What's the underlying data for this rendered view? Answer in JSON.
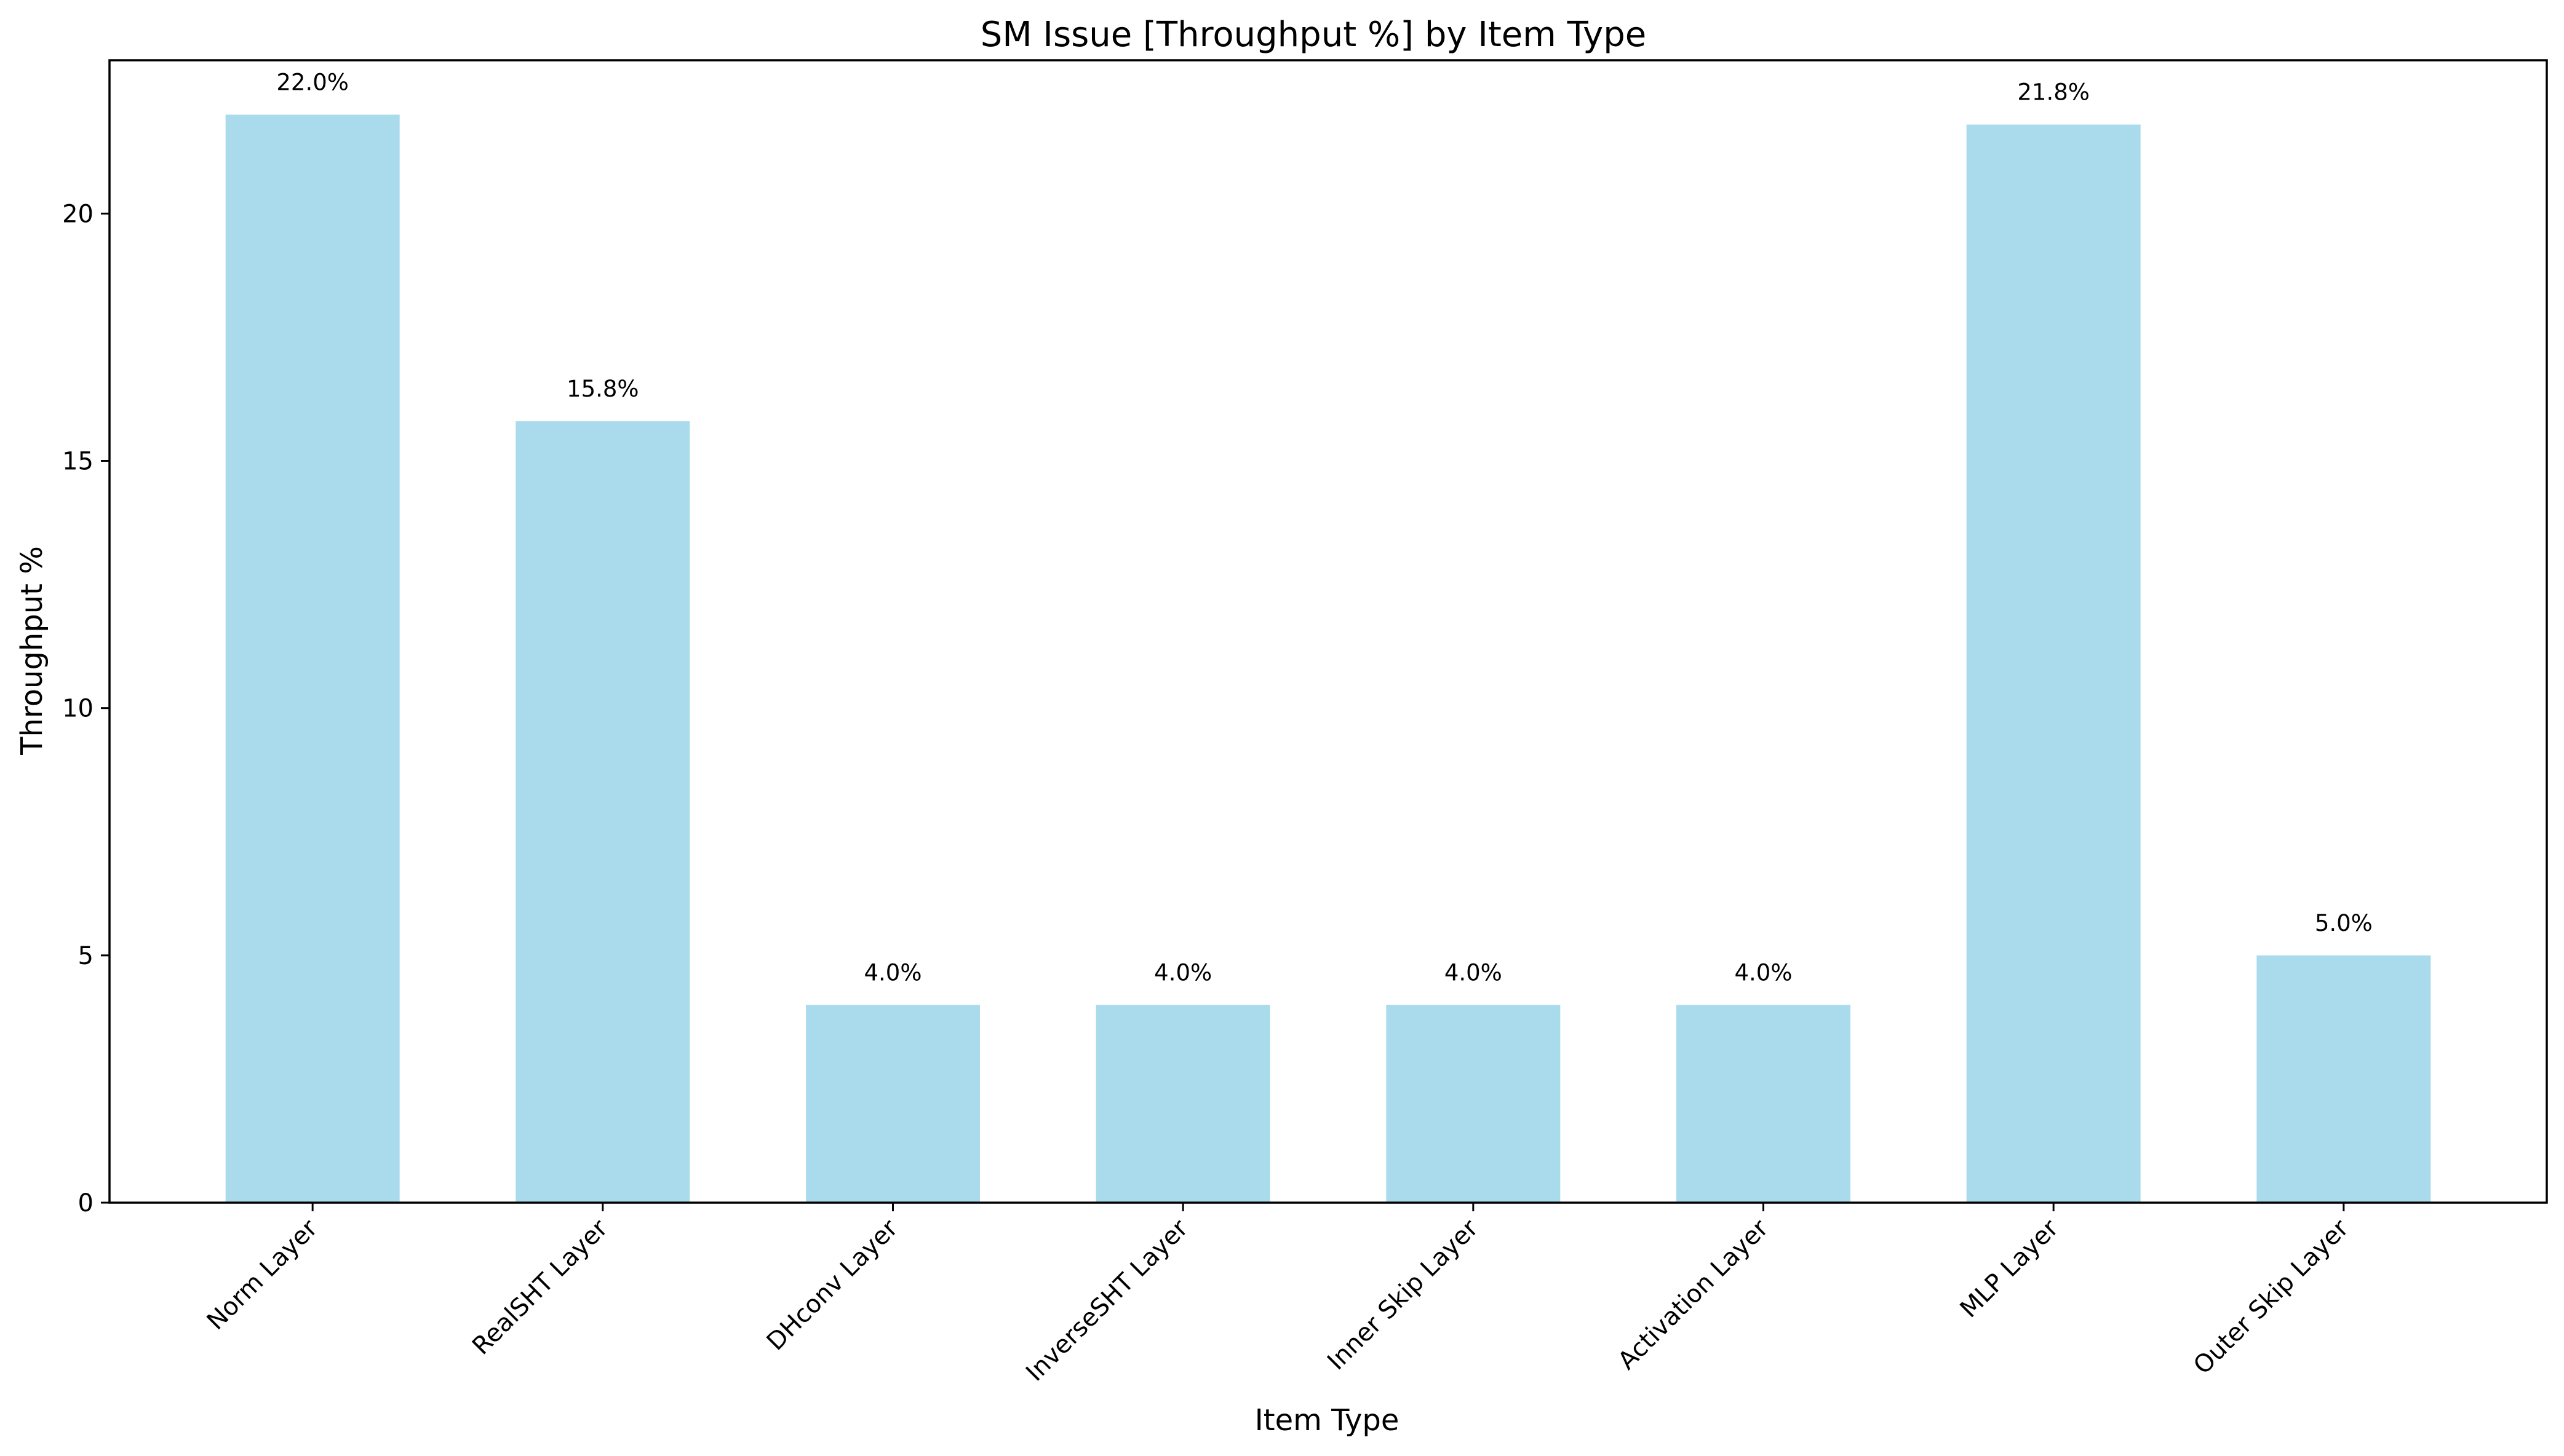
{
  "chart_data": {
    "type": "bar",
    "title": "SM Issue [Throughput %] by Item Type",
    "xlabel": "Item Type",
    "ylabel": "Throughput %",
    "categories": [
      "Norm Layer",
      "RealSHT Layer",
      "DHconv Layer",
      "InverseSHT Layer",
      "Inner Skip Layer",
      "Activation Layer",
      "MLP Layer",
      "Outer Skip Layer"
    ],
    "values": [
      22.0,
      15.8,
      4.0,
      4.0,
      4.0,
      4.0,
      21.8,
      5.0
    ],
    "data_labels": [
      "22.0%",
      "15.8%",
      "4.0%",
      "4.0%",
      "4.0%",
      "4.0%",
      "21.8%",
      "5.0%"
    ],
    "ylim": [
      0,
      23.1
    ],
    "yticks": [
      0,
      5,
      10,
      15,
      20
    ],
    "grid": false,
    "legend": "none",
    "bar_color": "#a9dbed"
  }
}
